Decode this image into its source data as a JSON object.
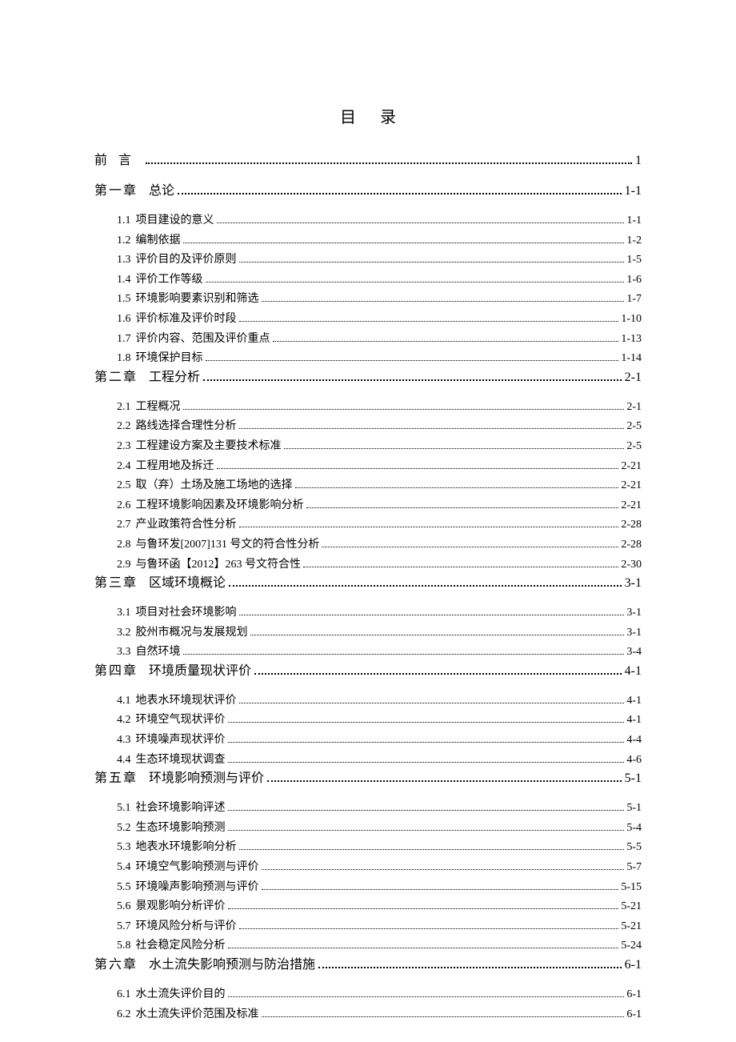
{
  "title": "目录",
  "preface": {
    "label": "前言",
    "page": "1"
  },
  "chapters": [
    {
      "label": "第一章",
      "title": "总论",
      "page": "1-1",
      "sections": [
        {
          "num": "1.1",
          "title": "项目建设的意义",
          "page": "1-1"
        },
        {
          "num": "1.2",
          "title": "编制依据",
          "page": "1-2"
        },
        {
          "num": "1.3",
          "title": "评价目的及评价原则",
          "page": "1-5"
        },
        {
          "num": "1.4",
          "title": "评价工作等级",
          "page": "1-6"
        },
        {
          "num": "1.5",
          "title": "环境影响要素识别和筛选",
          "page": "1-7"
        },
        {
          "num": "1.6",
          "title": "评价标准及评价时段",
          "page": "1-10"
        },
        {
          "num": "1.7",
          "title": "评价内容、范围及评价重点",
          "page": "1-13"
        },
        {
          "num": "1.8",
          "title": "环境保护目标",
          "page": "1-14"
        }
      ]
    },
    {
      "label": "第二章",
      "title": "工程分析",
      "page": "2-1",
      "sections": [
        {
          "num": "2.1",
          "title": "工程概况",
          "page": "2-1"
        },
        {
          "num": "2.2",
          "title": "路线选择合理性分析",
          "page": "2-5"
        },
        {
          "num": "2.3",
          "title": "工程建设方案及主要技术标准",
          "page": "2-5"
        },
        {
          "num": "2.4",
          "title": "工程用地及拆迁",
          "page": "2-21"
        },
        {
          "num": "2.5",
          "title": "取（弃）土场及施工场地的选择",
          "page": "2-21"
        },
        {
          "num": "2.6",
          "title": "工程环境影响因素及环境影响分析",
          "page": "2-21"
        },
        {
          "num": "2.7",
          "title": "产业政策符合性分析",
          "page": "2-28"
        },
        {
          "num": "2.8",
          "title": "与鲁环发[2007]131 号文的符合性分析",
          "page": "2-28"
        },
        {
          "num": "2.9",
          "title": "与鲁环函【2012】263 号文符合性",
          "page": "2-30"
        }
      ]
    },
    {
      "label": "第三章",
      "title": "区域环境概论",
      "page": "3-1",
      "sections": [
        {
          "num": "3.1",
          "title": "项目对社会环境影响",
          "page": "3-1"
        },
        {
          "num": "3.2",
          "title": "胶州市概况与发展规划",
          "page": "3-1"
        },
        {
          "num": "3.3",
          "title": "自然环境",
          "page": "3-4"
        }
      ]
    },
    {
      "label": "第四章",
      "title": "环境质量现状评价",
      "page": "4-1",
      "sections": [
        {
          "num": "4.1",
          "title": "地表水环境现状评价",
          "page": "4-1"
        },
        {
          "num": "4.2",
          "title": "环境空气现状评价",
          "page": "4-1"
        },
        {
          "num": "4.3",
          "title": "环境噪声现状评价",
          "page": "4-4"
        },
        {
          "num": "4.4",
          "title": "生态环境现状调查",
          "page": "4-6"
        }
      ]
    },
    {
      "label": "第五章",
      "title": "环境影响预测与评价",
      "page": "5-1",
      "sections": [
        {
          "num": "5.1",
          "title": "社会环境影响评述",
          "page": "5-1"
        },
        {
          "num": "5.2",
          "title": "生态环境影响预测",
          "page": "5-4"
        },
        {
          "num": "5.3",
          "title": "地表水环境影响分析",
          "page": "5-5"
        },
        {
          "num": "5.4",
          "title": "环境空气影响预测与评价",
          "page": "5-7"
        },
        {
          "num": "5.5",
          "title": "环境噪声影响预测与评价",
          "page": "5-15"
        },
        {
          "num": "5.6",
          "title": "景观影响分析评价",
          "page": "5-21"
        },
        {
          "num": "5.7",
          "title": "环境风险分析与评价",
          "page": "5-21"
        },
        {
          "num": "5.8",
          "title": "社会稳定风险分析",
          "page": "5-24"
        }
      ]
    },
    {
      "label": "第六章",
      "title": "水土流失影响预测与防治措施",
      "page": "6-1",
      "sections": [
        {
          "num": "6.1",
          "title": "水土流失评价目的",
          "page": "6-1"
        },
        {
          "num": "6.2",
          "title": "水土流失评价范围及标准",
          "page": "6-1"
        }
      ]
    }
  ]
}
